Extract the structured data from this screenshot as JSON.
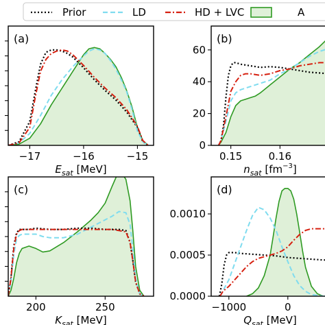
{
  "legend": [
    {
      "label": "Prior",
      "color": "#000000",
      "dash": "dotted"
    },
    {
      "label": "LD",
      "color": "#7fdcef",
      "dash": "dashed"
    },
    {
      "label": "HD + LVC",
      "color": "#d62010",
      "dash": "dashdot"
    },
    {
      "label": "A",
      "color": "#2e9a22",
      "dash": "solid",
      "fill": "#dff0d8"
    }
  ],
  "chart_data": [
    {
      "panel": "(a)",
      "type": "line",
      "xlabel_main": "E",
      "xlabel_sub": "sat",
      "xlabel_unit": "[MeV]",
      "xlabel_sup": "",
      "xlim": [
        -17.4,
        -14.7
      ],
      "ylim": [
        0,
        1.0
      ],
      "xticks": [
        -17,
        -16,
        -15
      ],
      "xtick_labels": [
        "−17",
        "−16",
        "−15"
      ],
      "yticks": [],
      "ytick_labels": [],
      "series": [
        {
          "name": "Prior",
          "x": [
            -17.4,
            -17.2,
            -17.0,
            -16.9,
            -16.8,
            -16.7,
            -16.6,
            -16.5,
            -16.4,
            -16.3,
            -16.2,
            -16.0,
            -15.8,
            -15.6,
            -15.4,
            -15.2,
            -15.0,
            -14.9,
            -14.8
          ],
          "y": [
            0.0,
            0.03,
            0.2,
            0.45,
            0.68,
            0.78,
            0.8,
            0.8,
            0.79,
            0.77,
            0.74,
            0.65,
            0.55,
            0.46,
            0.38,
            0.28,
            0.15,
            0.03,
            0.0
          ]
        },
        {
          "name": "LD",
          "x": [
            -17.4,
            -17.2,
            -17.0,
            -16.8,
            -16.6,
            -16.4,
            -16.2,
            -16.0,
            -15.9,
            -15.8,
            -15.7,
            -15.6,
            -15.5,
            -15.4,
            -15.3,
            -15.2,
            -15.1,
            -15.0,
            -14.9,
            -14.8
          ],
          "y": [
            0.0,
            0.02,
            0.1,
            0.25,
            0.42,
            0.55,
            0.66,
            0.75,
            0.79,
            0.81,
            0.8,
            0.77,
            0.71,
            0.64,
            0.55,
            0.45,
            0.3,
            0.12,
            0.03,
            0.0
          ]
        },
        {
          "name": "HD + LVC",
          "x": [
            -17.4,
            -17.2,
            -17.0,
            -16.9,
            -16.8,
            -16.7,
            -16.6,
            -16.5,
            -16.4,
            -16.3,
            -16.2,
            -16.0,
            -15.8,
            -15.6,
            -15.4,
            -15.2,
            -15.0,
            -14.9,
            -14.8
          ],
          "y": [
            0.0,
            0.02,
            0.15,
            0.4,
            0.62,
            0.72,
            0.77,
            0.79,
            0.8,
            0.79,
            0.76,
            0.67,
            0.57,
            0.48,
            0.4,
            0.3,
            0.16,
            0.04,
            0.0
          ]
        },
        {
          "name": "A",
          "x": [
            -17.4,
            -17.2,
            -17.0,
            -16.8,
            -16.6,
            -16.4,
            -16.2,
            -16.0,
            -15.9,
            -15.8,
            -15.7,
            -15.6,
            -15.5,
            -15.4,
            -15.3,
            -15.2,
            -15.1,
            -15.0,
            -14.9,
            -14.8
          ],
          "y": [
            0.0,
            0.01,
            0.06,
            0.18,
            0.34,
            0.48,
            0.62,
            0.76,
            0.81,
            0.82,
            0.81,
            0.77,
            0.72,
            0.66,
            0.57,
            0.46,
            0.32,
            0.15,
            0.04,
            0.0
          ]
        }
      ]
    },
    {
      "panel": "(b)",
      "type": "line",
      "xlabel_main": "n",
      "xlabel_sub": "sat",
      "xlabel_unit": "[fm",
      "xlabel_sup": "−3",
      "xlim": [
        0.146,
        0.17
      ],
      "ylim": [
        0,
        75
      ],
      "xticks": [
        0.15,
        0.16
      ],
      "xtick_labels": [
        "0.15",
        "0.16"
      ],
      "yticks": [
        0,
        20,
        40,
        60
      ],
      "ytick_labels": [
        "0",
        "20",
        "40",
        "60"
      ],
      "series": [
        {
          "name": "Prior",
          "x": [
            0.1475,
            0.148,
            0.1485,
            0.149,
            0.1495,
            0.15,
            0.1505,
            0.151,
            0.152,
            0.154,
            0.156,
            0.158,
            0.16,
            0.162,
            0.164,
            0.166,
            0.168,
            0.17
          ],
          "y": [
            0,
            3,
            12,
            30,
            44,
            50,
            52,
            52,
            51,
            50,
            49,
            49.5,
            49,
            48,
            47,
            46,
            45.5,
            45
          ]
        },
        {
          "name": "LD",
          "x": [
            0.1475,
            0.148,
            0.149,
            0.15,
            0.151,
            0.152,
            0.153,
            0.154,
            0.156,
            0.158,
            0.16,
            0.162,
            0.164,
            0.166,
            0.168,
            0.17
          ],
          "y": [
            0,
            3,
            15,
            28,
            33,
            35,
            36,
            37,
            39,
            41,
            45,
            48,
            52,
            56,
            59,
            61
          ]
        },
        {
          "name": "HD + LVC",
          "x": [
            0.1475,
            0.148,
            0.149,
            0.15,
            0.151,
            0.152,
            0.153,
            0.154,
            0.156,
            0.158,
            0.16,
            0.162,
            0.164,
            0.166,
            0.168,
            0.17
          ],
          "y": [
            0,
            3,
            18,
            34,
            40,
            44,
            45,
            45,
            44,
            45,
            47,
            48,
            50,
            51,
            52,
            52
          ]
        },
        {
          "name": "A",
          "x": [
            0.1475,
            0.148,
            0.149,
            0.15,
            0.151,
            0.152,
            0.153,
            0.154,
            0.155,
            0.156,
            0.158,
            0.16,
            0.162,
            0.164,
            0.166,
            0.168,
            0.17
          ],
          "y": [
            0,
            2,
            8,
            18,
            25,
            28,
            29,
            30,
            31,
            33,
            38,
            43,
            48,
            52,
            57,
            62,
            68
          ]
        }
      ]
    },
    {
      "panel": "(c)",
      "type": "line",
      "xlabel_main": "K",
      "xlabel_sub": "sat",
      "xlabel_unit": "[MeV]",
      "xlabel_sup": "",
      "xlim": [
        180,
        285
      ],
      "ylim": [
        0,
        1.0
      ],
      "xticks": [
        200,
        250
      ],
      "xtick_labels": [
        "200",
        "250"
      ],
      "yticks": [],
      "ytick_labels": [],
      "series": [
        {
          "name": "Prior",
          "x": [
            180,
            182,
            184,
            186,
            188,
            190,
            195,
            200,
            210,
            220,
            230,
            240,
            250,
            255,
            260,
            265,
            268,
            270,
            272,
            275,
            278
          ],
          "y": [
            0,
            0.15,
            0.42,
            0.53,
            0.56,
            0.56,
            0.56,
            0.57,
            0.56,
            0.56,
            0.57,
            0.57,
            0.56,
            0.56,
            0.56,
            0.55,
            0.45,
            0.3,
            0.12,
            0.02,
            0
          ]
        },
        {
          "name": "LD",
          "x": [
            180,
            182,
            184,
            186,
            188,
            190,
            195,
            200,
            205,
            210,
            220,
            230,
            240,
            250,
            255,
            260,
            265,
            268,
            270,
            272,
            275,
            278
          ],
          "y": [
            0,
            0.12,
            0.35,
            0.48,
            0.51,
            0.52,
            0.52,
            0.52,
            0.5,
            0.49,
            0.49,
            0.52,
            0.58,
            0.64,
            0.67,
            0.71,
            0.7,
            0.6,
            0.4,
            0.15,
            0.02,
            0
          ]
        },
        {
          "name": "HD + LVC",
          "x": [
            180,
            182,
            184,
            186,
            188,
            190,
            195,
            200,
            210,
            220,
            230,
            240,
            250,
            255,
            260,
            265,
            268,
            270,
            272,
            275,
            278
          ],
          "y": [
            0,
            0.15,
            0.4,
            0.52,
            0.55,
            0.56,
            0.56,
            0.56,
            0.56,
            0.56,
            0.56,
            0.56,
            0.56,
            0.56,
            0.55,
            0.54,
            0.45,
            0.3,
            0.12,
            0.02,
            0
          ]
        },
        {
          "name": "A",
          "x": [
            180,
            182,
            184,
            186,
            188,
            190,
            195,
            200,
            205,
            210,
            220,
            230,
            240,
            245,
            250,
            255,
            258,
            262,
            265,
            268,
            270,
            272,
            275,
            278
          ],
          "y": [
            0,
            0.05,
            0.15,
            0.28,
            0.36,
            0.4,
            0.42,
            0.4,
            0.37,
            0.38,
            0.45,
            0.54,
            0.64,
            0.7,
            0.78,
            0.92,
            1.0,
            1.03,
            0.98,
            0.8,
            0.55,
            0.25,
            0.05,
            0
          ]
        }
      ]
    },
    {
      "panel": "(d)",
      "type": "line",
      "xlabel_main": "Q",
      "xlabel_sub": "sat",
      "xlabel_unit": "[MeV]",
      "xlabel_sup": "",
      "xlim": [
        -1300,
        700
      ],
      "ylim": [
        0,
        0.00145
      ],
      "xticks": [
        -1000,
        0
      ],
      "xtick_labels": [
        "−1000",
        "0"
      ],
      "yticks": [
        0,
        0.0005,
        0.001
      ],
      "ytick_labels": [
        "0.0000",
        "0.0005",
        "0.0010"
      ],
      "series": [
        {
          "name": "Prior",
          "x": [
            -1160,
            -1120,
            -1080,
            -1040,
            -1000,
            -900,
            -800,
            -600,
            -400,
            -200,
            0,
            200,
            400,
            600,
            700
          ],
          "y": [
            0,
            0.00015,
            0.00038,
            0.0005,
            0.00053,
            0.00053,
            0.00052,
            0.00051,
            0.0005,
            0.00049,
            0.00047,
            0.00046,
            0.00045,
            0.00044,
            0.00044
          ]
        },
        {
          "name": "LD",
          "x": [
            -1150,
            -1000,
            -900,
            -800,
            -700,
            -600,
            -500,
            -400,
            -300,
            -200,
            -100,
            0,
            100,
            200,
            300,
            400,
            600,
            700
          ],
          "y": [
            0,
            0.0002,
            0.0004,
            0.0006,
            0.0008,
            0.00098,
            0.00108,
            0.00105,
            0.00095,
            0.0008,
            0.0006,
            0.00042,
            0.00025,
            0.00013,
            6e-05,
            2e-05,
            0,
            0
          ]
        },
        {
          "name": "HD + LVC",
          "x": [
            -1150,
            -1100,
            -1000,
            -900,
            -800,
            -700,
            -600,
            -500,
            -400,
            -300,
            -200,
            -100,
            0,
            100,
            200,
            300,
            400,
            500,
            600,
            700
          ],
          "y": [
            0,
            6e-05,
            0.00012,
            0.0002,
            0.00028,
            0.00036,
            0.00042,
            0.00046,
            0.00048,
            0.0005,
            0.00052,
            0.00055,
            0.0006,
            0.00068,
            0.00075,
            0.0008,
            0.00082,
            0.00082,
            0.00082,
            0.00082
          ]
        },
        {
          "name": "A",
          "x": [
            -700,
            -600,
            -500,
            -400,
            -300,
            -250,
            -200,
            -150,
            -100,
            -50,
            0,
            50,
            100,
            150,
            200,
            250,
            300,
            400,
            500,
            600,
            700
          ],
          "y": [
            0,
            3e-05,
            0.0001,
            0.00025,
            0.0005,
            0.00072,
            0.00095,
            0.00115,
            0.00128,
            0.00131,
            0.00131,
            0.00128,
            0.00118,
            0.001,
            0.00078,
            0.00055,
            0.00035,
            0.00012,
            3e-05,
            0,
            0
          ]
        }
      ]
    }
  ]
}
